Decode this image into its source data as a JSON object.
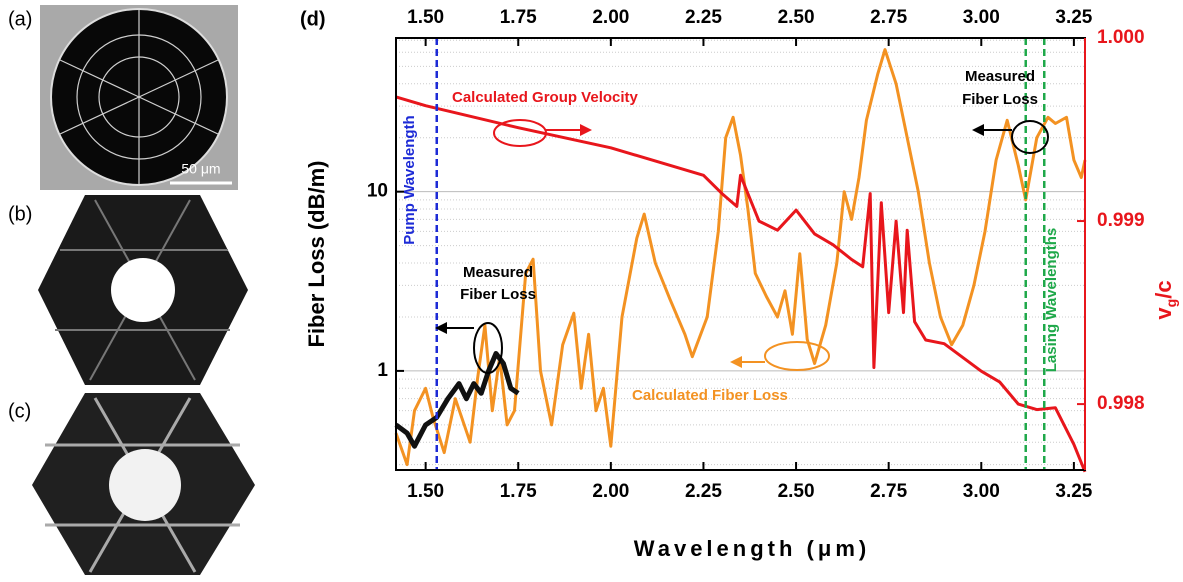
{
  "panels": {
    "labels": [
      "(a)",
      "(b)",
      "(c)"
    ],
    "scale_bar": "50 μm"
  },
  "chart_data": {
    "type": "line",
    "panel_label": "(d)",
    "xlabel": "Wavelength (μm)",
    "ylabel": "Fiber Loss (dB/m)",
    "y2label_parts": [
      "v",
      "g",
      "/c"
    ],
    "xlim": [
      1.42,
      3.28
    ],
    "xticks": [
      {
        "value": 1.5,
        "label": "1.50"
      },
      {
        "value": 1.75,
        "label": "1.75"
      },
      {
        "value": 2.0,
        "label": "2.00"
      },
      {
        "value": 2.25,
        "label": "2.25"
      },
      {
        "value": 2.5,
        "label": "2.50"
      },
      {
        "value": 2.75,
        "label": "2.75"
      },
      {
        "value": 3.0,
        "label": "3.00"
      },
      {
        "value": 3.25,
        "label": "3.25"
      }
    ],
    "ylim": [
      0.28,
      72
    ],
    "ylog": true,
    "yticks": [
      1,
      10
    ],
    "y2lim": [
      0.99764,
      1.0
    ],
    "y2ticks": [
      {
        "value": 0.998,
        "label": "0.998"
      },
      {
        "value": 0.999,
        "label": "0.999"
      },
      {
        "value": 1.0,
        "label": "1.000"
      }
    ],
    "grid": true,
    "series": [
      {
        "name": "Calculated Fiber Loss",
        "color": "#f39222",
        "x": [
          1.42,
          1.45,
          1.47,
          1.5,
          1.52,
          1.55,
          1.58,
          1.62,
          1.64,
          1.66,
          1.68,
          1.7,
          1.72,
          1.74,
          1.77,
          1.79,
          1.81,
          1.84,
          1.87,
          1.9,
          1.92,
          1.94,
          1.96,
          1.98,
          2.0,
          2.03,
          2.07,
          2.09,
          2.12,
          2.16,
          2.2,
          2.22,
          2.26,
          2.29,
          2.31,
          2.33,
          2.35,
          2.37,
          2.39,
          2.42,
          2.45,
          2.47,
          2.49,
          2.51,
          2.53,
          2.55,
          2.58,
          2.61,
          2.63,
          2.65,
          2.67,
          2.69,
          2.72,
          2.74,
          2.77,
          2.8,
          2.83,
          2.86,
          2.89,
          2.92,
          2.95,
          2.98,
          3.01,
          3.04,
          3.07,
          3.1,
          3.12,
          3.15,
          3.18,
          3.2,
          3.23,
          3.25,
          3.27,
          3.28
        ],
        "values": [
          0.45,
          0.3,
          0.6,
          0.8,
          0.55,
          0.35,
          0.7,
          0.4,
          0.9,
          1.8,
          0.6,
          1.2,
          0.5,
          0.6,
          3.5,
          4.2,
          1.0,
          0.5,
          1.4,
          2.1,
          0.8,
          1.6,
          0.6,
          0.8,
          0.38,
          2.0,
          5.5,
          7.5,
          4.0,
          2.5,
          1.6,
          1.2,
          2.0,
          6.0,
          20,
          26,
          16,
          8,
          3.5,
          2.6,
          2.0,
          2.8,
          1.6,
          4.5,
          1.5,
          1.1,
          1.8,
          4.0,
          10,
          7,
          12,
          25,
          45,
          62,
          40,
          20,
          10,
          4,
          2.0,
          1.4,
          1.8,
          3.0,
          6,
          15,
          25,
          14,
          9,
          20,
          26,
          24,
          26,
          15,
          12,
          15
        ]
      },
      {
        "name": "Measured Fiber Loss",
        "color": "#111111",
        "x": [
          1.42,
          1.45,
          1.47,
          1.5,
          1.53,
          1.56,
          1.59,
          1.61,
          1.63,
          1.65,
          1.67,
          1.69,
          1.71,
          1.73,
          1.75
        ],
        "values": [
          0.5,
          0.45,
          0.38,
          0.5,
          0.55,
          0.7,
          0.85,
          0.7,
          0.85,
          0.75,
          1.0,
          1.25,
          1.1,
          0.8,
          0.75
        ]
      },
      {
        "name": "Calculated Group Velocity",
        "color": "#e8161c",
        "axis": "y2",
        "x": [
          1.42,
          1.5,
          1.75,
          2.0,
          2.25,
          2.3,
          2.34,
          2.35,
          2.4,
          2.45,
          2.5,
          2.55,
          2.6,
          2.65,
          2.68,
          2.7,
          2.71,
          2.73,
          2.75,
          2.77,
          2.79,
          2.8,
          2.82,
          2.85,
          2.9,
          3.0,
          3.05,
          3.1,
          3.15,
          3.2,
          3.25,
          3.28
        ],
        "values": [
          0.999678,
          0.99963,
          0.99951,
          0.9994,
          0.99925,
          0.99915,
          0.99908,
          0.99925,
          0.999,
          0.99895,
          0.99906,
          0.99893,
          0.99887,
          0.99879,
          0.99875,
          0.99915,
          0.9982,
          0.9991,
          0.9985,
          0.999,
          0.9985,
          0.99895,
          0.99845,
          0.99835,
          0.99833,
          0.99818,
          0.99812,
          0.998,
          0.99797,
          0.99798,
          0.99778,
          0.99763
        ]
      }
    ],
    "vlines": [
      {
        "x": 1.53,
        "color": "#1d2bd6"
      },
      {
        "x": 3.12,
        "color": "#1fa84a"
      },
      {
        "x": 3.17,
        "color": "#1fa84a"
      }
    ],
    "annotations": {
      "pump": "Pump Wavelength",
      "lasing": "Lasing Wavelengths",
      "measured_left": [
        "Measured",
        "Fiber Loss"
      ],
      "measured_right": [
        "Measured",
        "Fiber Loss"
      ],
      "group_velocity": "Calculated Group Velocity",
      "fiber_loss": "Calculated Fiber Loss"
    }
  }
}
